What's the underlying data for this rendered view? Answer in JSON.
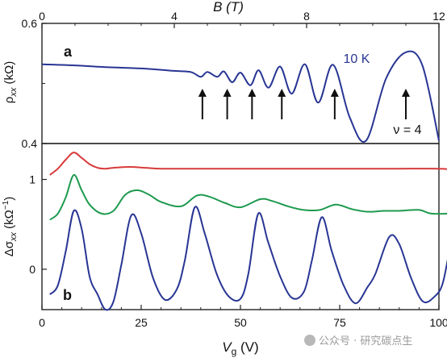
{
  "chart_data": [
    {
      "panel": "a",
      "type": "line",
      "top_axis": {
        "label": "B (T)",
        "ticks": [
          "0",
          "4",
          "8",
          "12"
        ],
        "range": [
          0,
          12
        ]
      },
      "ylabel": "ρxx (kΩ)",
      "yticks": [
        "0.6",
        "0.4"
      ],
      "ylim": [
        0.4,
        0.6
      ],
      "annotations": [
        "10 K",
        "ν = 4"
      ],
      "arrows_at_B": [
        4.85,
        5.6,
        6.35,
        7.25,
        8.85,
        11.0
      ],
      "series": [
        {
          "color": "#283593",
          "x": [
            0,
            1,
            2,
            3,
            4,
            4.5,
            4.8,
            5.0,
            5.3,
            5.5,
            5.75,
            6.0,
            6.3,
            6.55,
            6.85,
            7.2,
            7.55,
            7.95,
            8.35,
            8.8,
            9.3,
            9.8,
            10.4,
            11.0,
            11.5,
            12.0
          ],
          "y": [
            0.532,
            0.53,
            0.527,
            0.525,
            0.521,
            0.519,
            0.511,
            0.519,
            0.511,
            0.52,
            0.502,
            0.518,
            0.497,
            0.522,
            0.493,
            0.528,
            0.483,
            0.532,
            0.468,
            0.531,
            0.444,
            0.405,
            0.508,
            0.552,
            0.53,
            0.405
          ]
        }
      ]
    },
    {
      "panel": "b",
      "type": "line",
      "xlabel": "Vg (V)",
      "xticks": [
        "0",
        "25",
        "50",
        "75",
        "100"
      ],
      "xlim": [
        0,
        100
      ],
      "ylabel": "Δσxx (kΩ⁻¹)",
      "yticks": [
        "1",
        "0"
      ],
      "ylim": [
        -0.45,
        1.4
      ],
      "series": [
        {
          "color": "#d83a3a",
          "x": [
            2,
            4,
            6,
            8,
            10,
            12,
            14,
            16,
            18,
            22,
            26,
            30,
            40,
            50,
            60,
            70,
            80,
            90,
            100,
            103
          ],
          "y": [
            1.05,
            1.12,
            1.22,
            1.3,
            1.24,
            1.17,
            1.13,
            1.12,
            1.13,
            1.14,
            1.13,
            1.12,
            1.12,
            1.12,
            1.12,
            1.12,
            1.12,
            1.12,
            1.12,
            1.11
          ]
        },
        {
          "color": "#1e9a4e",
          "x": [
            2,
            4,
            6,
            8,
            10,
            12,
            15,
            18,
            21,
            24,
            27,
            30,
            35,
            39,
            42,
            46,
            50,
            55,
            58,
            62,
            66,
            70,
            74,
            78,
            82,
            86,
            90,
            95,
            98,
            103
          ],
          "y": [
            0.55,
            0.62,
            0.8,
            1.05,
            0.88,
            0.72,
            0.62,
            0.65,
            0.83,
            0.88,
            0.83,
            0.75,
            0.7,
            0.82,
            0.81,
            0.74,
            0.69,
            0.78,
            0.76,
            0.7,
            0.66,
            0.66,
            0.72,
            0.67,
            0.64,
            0.65,
            0.65,
            0.66,
            0.62,
            0.62
          ]
        },
        {
          "color": "#283593",
          "x": [
            2,
            4,
            6,
            8,
            10,
            12,
            14,
            16,
            18,
            20,
            22.5,
            25,
            28,
            31,
            34,
            36,
            38.5,
            41,
            44,
            47,
            50,
            52,
            54.5,
            57,
            60,
            63,
            66,
            68,
            70.5,
            73,
            76,
            79,
            82,
            84,
            87.5,
            90,
            93,
            96,
            99,
            101,
            103
          ],
          "y": [
            -0.28,
            -0.18,
            0.2,
            0.65,
            0.45,
            -0.08,
            -0.28,
            -0.45,
            -0.36,
            0.05,
            0.6,
            0.4,
            -0.1,
            -0.34,
            -0.22,
            0.1,
            0.69,
            0.4,
            -0.05,
            -0.3,
            -0.33,
            -0.05,
            0.62,
            0.3,
            -0.08,
            -0.32,
            -0.25,
            0.1,
            0.58,
            0.2,
            -0.18,
            -0.38,
            -0.2,
            -0.05,
            0.36,
            0.28,
            -0.1,
            -0.36,
            -0.3,
            -0.15,
            0.3
          ]
        }
      ]
    }
  ],
  "watermark": "公众号 · 研究碳点生"
}
